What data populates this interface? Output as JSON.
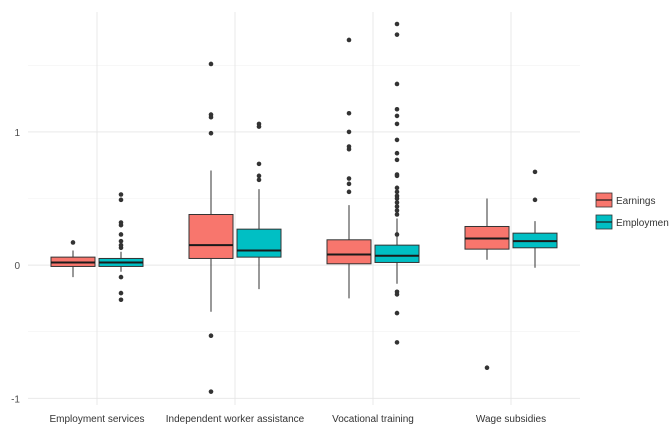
{
  "chart_data": {
    "type": "boxplot",
    "title": "",
    "xlabel": "",
    "ylabel": "",
    "ylim": [
      -1.05,
      1.9
    ],
    "yticks": [
      -1,
      0,
      1
    ],
    "grid": true,
    "legend_position": "right",
    "categories": [
      "Employment services",
      "Independent worker assistance",
      "Vocational training",
      "Wage subsidies"
    ],
    "series": [
      {
        "name": "Earnings",
        "color": "#F8766D",
        "boxes": [
          {
            "whisker_low": -0.09,
            "q1": -0.01,
            "median": 0.02,
            "q3": 0.06,
            "whisker_high": 0.11,
            "outliers": [
              0.17
            ]
          },
          {
            "whisker_low": -0.35,
            "q1": 0.05,
            "median": 0.15,
            "q3": 0.38,
            "whisker_high": 0.71,
            "outliers": [
              1.51,
              1.13,
              1.11,
              0.99,
              -0.53,
              -0.95
            ]
          },
          {
            "whisker_low": -0.25,
            "q1": 0.01,
            "median": 0.08,
            "q3": 0.19,
            "whisker_high": 0.45,
            "outliers": [
              1.69,
              1.14,
              1.0,
              0.89,
              0.87,
              0.65,
              0.61,
              0.55
            ]
          },
          {
            "whisker_low": 0.04,
            "q1": 0.12,
            "median": 0.2,
            "q3": 0.29,
            "whisker_high": 0.5,
            "outliers": [
              -0.77
            ]
          }
        ]
      },
      {
        "name": "Employment",
        "color": "#00BFC4",
        "boxes": [
          {
            "whisker_low": -0.05,
            "q1": -0.01,
            "median": 0.02,
            "q3": 0.05,
            "whisker_high": 0.1,
            "outliers": [
              0.53,
              0.49,
              0.32,
              0.3,
              0.23,
              0.18,
              0.15,
              0.13,
              -0.09,
              -0.21,
              -0.26
            ]
          },
          {
            "whisker_low": -0.18,
            "q1": 0.06,
            "median": 0.11,
            "q3": 0.27,
            "whisker_high": 0.57,
            "outliers": [
              1.06,
              1.04,
              0.76,
              0.67,
              0.64
            ]
          },
          {
            "whisker_low": -0.14,
            "q1": 0.02,
            "median": 0.07,
            "q3": 0.15,
            "whisker_high": 0.35,
            "outliers": [
              1.81,
              1.73,
              1.36,
              1.17,
              1.12,
              1.06,
              0.94,
              0.84,
              0.79,
              0.68,
              0.67,
              0.58,
              0.55,
              0.52,
              0.5,
              0.47,
              0.44,
              0.41,
              0.38,
              0.23,
              -0.2,
              -0.22,
              -0.36,
              -0.58
            ]
          },
          {
            "whisker_low": -0.02,
            "q1": 0.13,
            "median": 0.18,
            "q3": 0.24,
            "whisker_high": 0.33,
            "outliers": [
              0.7,
              0.49
            ]
          }
        ]
      }
    ],
    "tick_labels": [
      "-1",
      "0",
      "1"
    ]
  }
}
